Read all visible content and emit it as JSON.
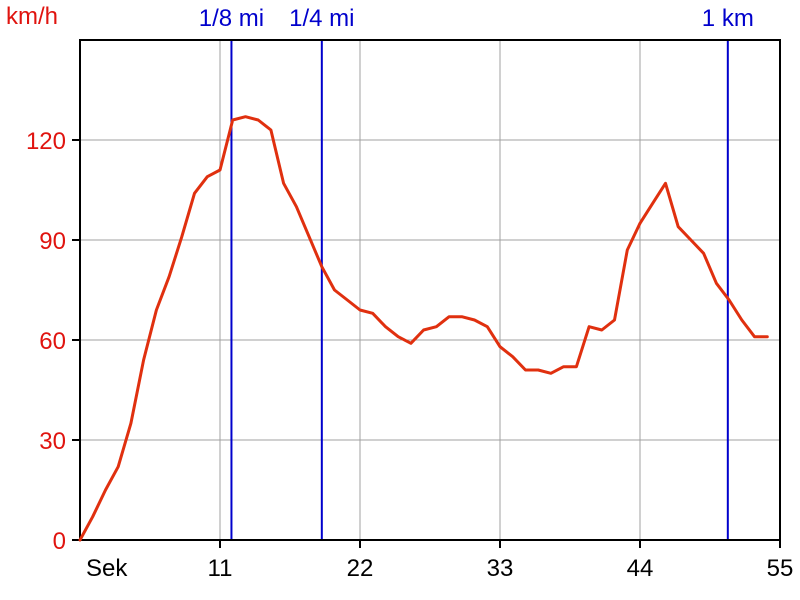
{
  "chart_data": {
    "type": "line",
    "ylabel": "km/h",
    "xlabel": "Sek",
    "xlim": [
      0,
      55
    ],
    "ylim": [
      0,
      150
    ],
    "x_ticks": [
      11,
      22,
      33,
      44,
      55
    ],
    "y_ticks": [
      0,
      30,
      60,
      90,
      120
    ],
    "grid": true,
    "colors": {
      "series": "#e0300f",
      "markers": "#0000cc",
      "grid": "#a0a0a0",
      "axis": "#000000",
      "ytick": "#e0140f"
    },
    "markers": [
      {
        "label": "1/8 mi",
        "x": 11.9
      },
      {
        "label": "1/4 mi",
        "x": 19.0
      },
      {
        "label": "1 km",
        "x": 50.9
      }
    ],
    "series": [
      {
        "x": [
          0,
          1,
          2,
          3,
          4,
          5,
          6,
          7,
          8,
          9,
          10,
          11,
          12,
          13,
          14,
          15,
          16,
          17,
          18,
          19,
          20,
          21,
          22,
          23,
          24,
          25,
          26,
          27,
          28,
          29,
          30,
          31,
          32,
          33,
          34,
          35,
          36,
          37,
          38,
          39,
          40,
          41,
          42,
          43,
          44,
          45,
          46,
          47,
          48,
          49,
          50,
          51,
          52,
          53,
          54
        ],
        "y": [
          0,
          7,
          15,
          22,
          35,
          54,
          69,
          79,
          91,
          104,
          109,
          111,
          126,
          127,
          126,
          123,
          107,
          100,
          91,
          82,
          75,
          72,
          69,
          68,
          64,
          61,
          59,
          63,
          64,
          67,
          67,
          66,
          64,
          58,
          55,
          51,
          51,
          50,
          52,
          52,
          64,
          63,
          66,
          87,
          95,
          101,
          107,
          94,
          90,
          86,
          77,
          72,
          66,
          61,
          61
        ]
      }
    ]
  }
}
